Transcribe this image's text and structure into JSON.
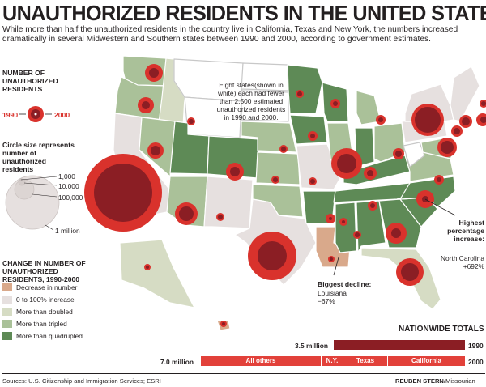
{
  "title": "UNAUTHORIZED RESIDENTS IN THE UNITED STATES",
  "subtitle": "While more than half the unauthorized residents in the country live in California, Texas and New York, the numbers increased dramatically in several Midwestern and Southern states between 1990 and 2000, according to government estimates.",
  "legend_number": {
    "title": "NUMBER OF UNAUTHORIZED RESIDENTS",
    "year_1990": "1990",
    "year_2000": "2000"
  },
  "legend_size": {
    "title": "Circle size represents number of unauthorized residents",
    "labels": [
      "1,000",
      "10,000",
      "100,000",
      "1 million"
    ]
  },
  "legend_change": {
    "title": "CHANGE IN NUMBER OF UNAUTHORIZED RESIDENTS, 1990-2000",
    "items": [
      {
        "label": "Decrease in number",
        "color": "#d9a98b"
      },
      {
        "label": "0 to 100% increase",
        "color": "#e6e0df"
      },
      {
        "label": "More than doubled",
        "color": "#d6dcc4"
      },
      {
        "label": "More than tripled",
        "color": "#aac199"
      },
      {
        "label": "More than quadrupled",
        "color": "#5e8a56"
      }
    ]
  },
  "annotations": {
    "white_states": "Eight states(shown in white) each had fewer than 2,500 estimated unauthorized residents in 1990 and 2000.",
    "highest_title": "Highest percentage increase:",
    "highest_detail": "North Carolina +692%",
    "decline_title": "Biggest decline:",
    "decline_detail": "Louisiana −67%"
  },
  "totals": {
    "title": "NATIONWIDE TOTALS",
    "value_1990": "3.5 million",
    "value_2000": "7.0 million",
    "year_1990": "1990",
    "year_2000": "2000",
    "segments": [
      "All others",
      "N.Y.",
      "Texas",
      "California"
    ]
  },
  "footer": {
    "sources": "Sources: U.S. Citizenship and Immigration Services; ESRI",
    "credit_bold": "REUBEN STERN",
    "credit_rest": "/Missourian"
  },
  "colors": {
    "red": "#d9322c",
    "dark_red": "#8b1e24",
    "bar_red": "#e2413a"
  }
}
